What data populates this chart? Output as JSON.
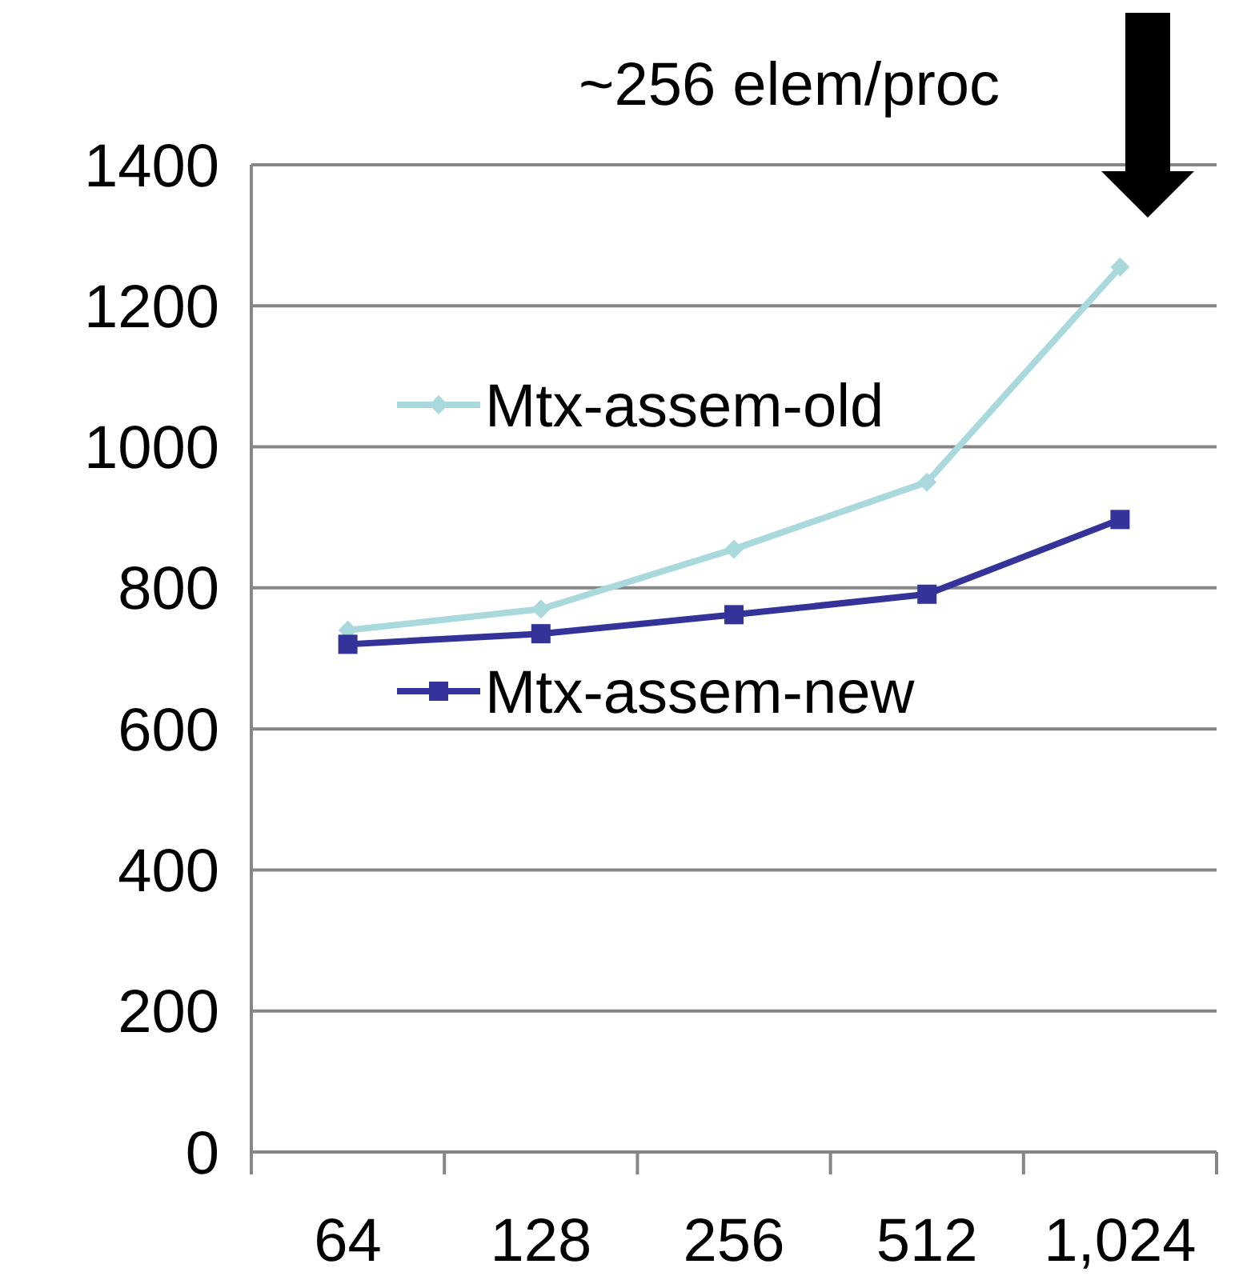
{
  "chart_data": {
    "type": "line",
    "annotations": [
      "~256 elem/proc"
    ],
    "categories": [
      "64",
      "128",
      "256",
      "512",
      "1,024"
    ],
    "series": [
      {
        "name": "Mtx-assem-old",
        "color": "#a9d9dc",
        "marker": "diamond",
        "values": [
          740,
          770,
          855,
          950,
          1255
        ]
      },
      {
        "name": "Mtx-assem-new",
        "color": "#333399",
        "marker": "square",
        "values": [
          720,
          735,
          762,
          791,
          897
        ]
      }
    ],
    "ylim": [
      0,
      1400
    ],
    "yticks": [
      0,
      200,
      400,
      600,
      800,
      1000,
      1200,
      1400
    ],
    "grid": "y",
    "legend": "left"
  }
}
